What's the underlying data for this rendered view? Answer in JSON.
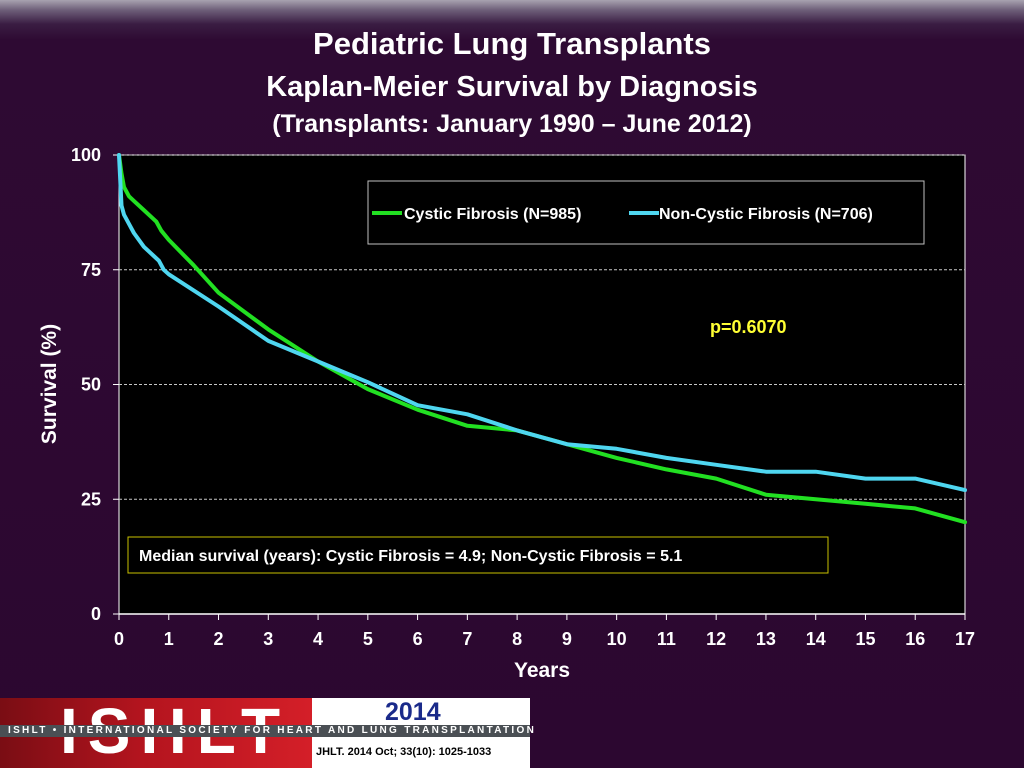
{
  "titles": {
    "line1": "Pediatric Lung Transplants",
    "line2": "Kaplan-Meier Survival by Diagnosis",
    "line3": "(Transplants: January 1990 – June 2012)"
  },
  "colors": {
    "background": "#2c0730",
    "plot_background": "#000000",
    "cystic_fibrosis": "#22e022",
    "non_cystic_fibrosis": "#4fd6f0",
    "p_value_text": "#ffff33",
    "median_box_border": "#c9c100",
    "legend_border": "#c0c0c0"
  },
  "chart_data": {
    "type": "line",
    "xlabel": "Years",
    "ylabel": "Survival (%)",
    "xlim": [
      0,
      17
    ],
    "ylim": [
      0,
      100
    ],
    "x_ticks": [
      "0",
      "1",
      "2",
      "3",
      "4",
      "5",
      "6",
      "7",
      "8",
      "9",
      "10",
      "11",
      "12",
      "13",
      "14",
      "15",
      "16",
      "17"
    ],
    "y_ticks": [
      "0",
      "25",
      "50",
      "75",
      "100"
    ],
    "grid": "horizontal dashed",
    "legend_placement": "top-right",
    "series": [
      {
        "name": "Cystic Fibrosis (N=985)",
        "color": "#22e022",
        "x": [
          0,
          0.05,
          0.1,
          0.2,
          0.3,
          0.5,
          0.7,
          0.75,
          0.85,
          1,
          1.5,
          2,
          3,
          4,
          5,
          6,
          7,
          8,
          9,
          10,
          11,
          12,
          13,
          14,
          15,
          16,
          17
        ],
        "y": [
          100,
          96,
          93,
          91,
          90,
          88,
          86,
          85.5,
          83.5,
          81.5,
          76,
          70,
          62,
          55,
          49,
          44.5,
          41,
          40,
          37,
          34,
          31.5,
          29.5,
          26,
          25,
          24,
          23,
          20
        ]
      },
      {
        "name": "Non-Cystic Fibrosis (N=706)",
        "color": "#4fd6f0",
        "x": [
          0,
          0.05,
          0.1,
          0.2,
          0.3,
          0.5,
          0.7,
          0.8,
          0.9,
          1,
          2,
          3,
          4,
          5,
          6,
          7,
          8,
          9,
          10,
          11,
          12,
          13,
          14,
          15,
          16,
          17
        ],
        "y": [
          100,
          89,
          87,
          85,
          83,
          80,
          78,
          77,
          75,
          74,
          67,
          59.5,
          55,
          50.5,
          45.5,
          43.5,
          40,
          37,
          36,
          34,
          32.5,
          31,
          31,
          29.5,
          29.5,
          27
        ]
      }
    ],
    "annotations": {
      "p_value": "p=0.6070",
      "median_survival": "Median survival (years): Cystic Fibrosis = 4.9; Non-Cystic Fibrosis = 5.1"
    }
  },
  "footer": {
    "logo_letters": "ISHLT",
    "logo_tagline": "ISHLT • INTERNATIONAL SOCIETY FOR HEART AND LUNG TRANSPLANTATION",
    "year": "2014",
    "citation": "JHLT. 2014 Oct; 33(10): 1025-1033"
  }
}
